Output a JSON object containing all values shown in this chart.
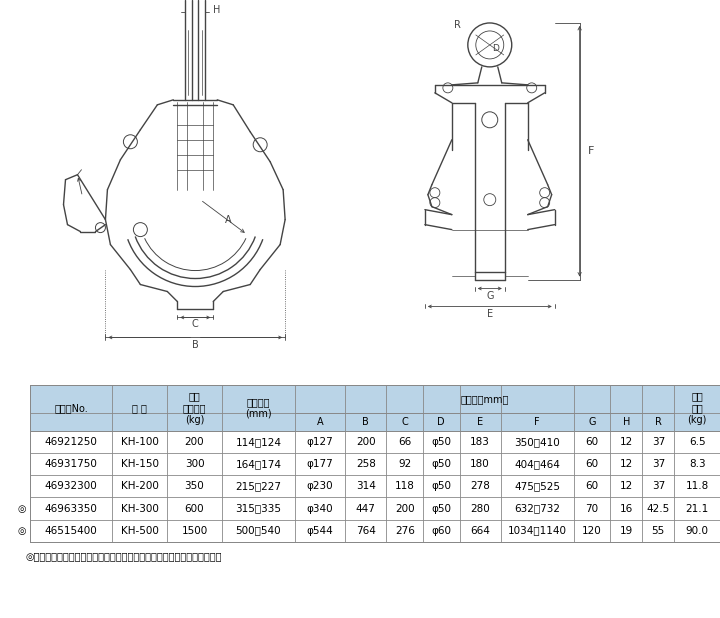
{
  "bg_color": "#ffffff",
  "line_color": "#444444",
  "table_header_bg": "#bad4e7",
  "table_border_color": "#888888",
  "col_headers_main": [
    "コードNo.",
    "型 式",
    "最大\n使用荷重\n(kg)",
    "適用寸法\n(mm)"
  ],
  "col_headers_sub": [
    "A",
    "B",
    "C",
    "D",
    "E",
    "F",
    "G",
    "H",
    "R"
  ],
  "col_header_last": "製品\n質量\n(kg)",
  "span_header": "寸　法（mm）",
  "rows": [
    [
      "",
      "46921250",
      "KH-100",
      "200",
      "114～124",
      "φ127",
      "200",
      "66",
      "φ50",
      "183",
      "350～410",
      "60",
      "12",
      "37",
      "6.5"
    ],
    [
      "",
      "46931750",
      "KH-150",
      "300",
      "164～174",
      "φ177",
      "258",
      "92",
      "φ50",
      "180",
      "404～464",
      "60",
      "12",
      "37",
      "8.3"
    ],
    [
      "",
      "46932300",
      "KH-200",
      "350",
      "215～227",
      "φ230",
      "314",
      "118",
      "φ50",
      "278",
      "475～525",
      "60",
      "12",
      "37",
      "11.8"
    ],
    [
      "◎",
      "46963350",
      "KH-300",
      "600",
      "315～335",
      "φ340",
      "447",
      "200",
      "φ50",
      "280",
      "632～732",
      "70",
      "16",
      "42.5",
      "21.1"
    ],
    [
      "◎",
      "46515400",
      "KH-500",
      "1500",
      "500～540",
      "φ544",
      "764",
      "276",
      "φ60",
      "664",
      "1034～1140",
      "120",
      "19",
      "55",
      "90.0"
    ]
  ],
  "footnote": "◎印は受注生産品：価格、納期についてはその都度お問い合わせ下さい。"
}
